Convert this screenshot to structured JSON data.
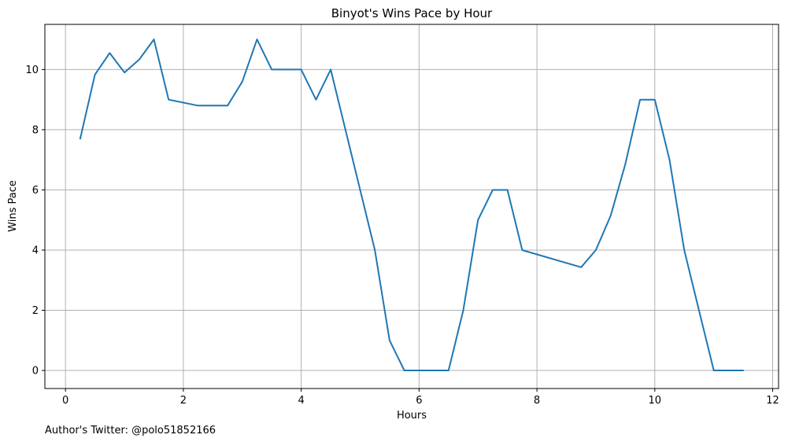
{
  "chart_data": {
    "type": "line",
    "title": "Binyot's Wins Pace by Hour",
    "xlabel": "Hours",
    "ylabel": "Wins Pace",
    "xlim": [
      -0.35,
      12.1
    ],
    "ylim": [
      -0.6,
      11.5
    ],
    "xticks": [
      0,
      2,
      4,
      6,
      8,
      10,
      12
    ],
    "yticks": [
      0,
      2,
      4,
      6,
      8,
      10
    ],
    "grid": true,
    "line_color": "#1f77b4",
    "series": [
      {
        "x": [
          0.25,
          0.5,
          0.75,
          1.0,
          1.25,
          1.5,
          1.75,
          2.25,
          2.75,
          3.0,
          3.25,
          3.5,
          4.0,
          4.25,
          4.5,
          4.75,
          5.0,
          5.25,
          5.5,
          5.75,
          6.0,
          6.25,
          6.5,
          6.75,
          7.0,
          7.25,
          7.5,
          7.75,
          8.75,
          9.0,
          9.25,
          9.5,
          9.75,
          10.0,
          10.25,
          10.5,
          10.75,
          11.0,
          11.25,
          11.5
        ],
        "y": [
          7.7,
          9.83,
          10.55,
          9.9,
          10.33,
          11.0,
          9.0,
          8.8,
          8.8,
          9.6,
          11.0,
          10.0,
          10.0,
          9.0,
          10.0,
          8.0,
          6.0,
          4.0,
          1.0,
          0.0,
          0.0,
          0.0,
          0.0,
          2.0,
          5.0,
          6.0,
          6.0,
          4.0,
          3.43,
          4.0,
          5.14,
          6.86,
          9.0,
          9.0,
          7.0,
          4.0,
          2.0,
          0.0,
          0.0,
          0.0
        ]
      }
    ]
  },
  "footnote": "Author's Twitter: @polo51852166"
}
